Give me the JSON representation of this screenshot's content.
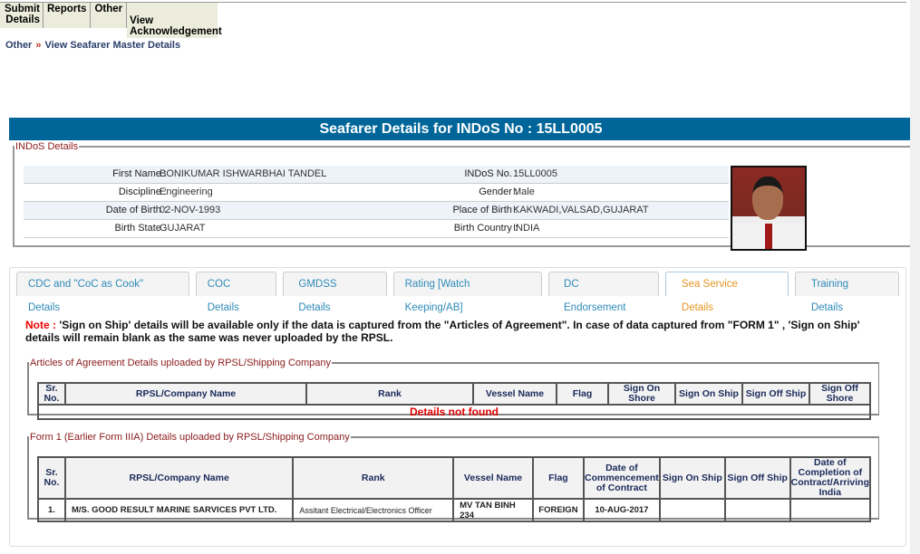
{
  "menu": [
    "Submit Details",
    "Reports",
    "Other",
    "View Acknowledgement"
  ],
  "breadcrumb": {
    "parent": "Other",
    "separator": "»",
    "current": "View Seafarer Master Details"
  },
  "header": "Seafarer Details for INDoS No : 15LL0005",
  "indos": {
    "legend": "INDoS Details",
    "rows": [
      {
        "l1": "First Name :",
        "v1": "BONIKUMAR ISHWARBHAI TANDEL",
        "l2": "INDoS No. :",
        "v2": "15LL0005"
      },
      {
        "l1": "Discipline :",
        "v1": "Engineering",
        "l2": "Gender :",
        "v2": "Male"
      },
      {
        "l1": "Date of Birth :",
        "v1": "02-NOV-1993",
        "l2": "Place of Birth :",
        "v2": "KAKWADI,VALSAD,GUJARAT"
      },
      {
        "l1": "Birth State :",
        "v1": "GUJARAT",
        "l2": "Birth Country :",
        "v2": "INDIA"
      }
    ]
  },
  "tabs": [
    "CDC and \"CoC as Cook\" Details",
    "COC Details",
    "GMDSS Details",
    "Rating [Watch Keeping/AB]",
    "DC Endorsement",
    "Sea Service Details",
    "Training Details"
  ],
  "active_tab": "Sea Service Details",
  "note": {
    "label": "Note :",
    "text": " 'Sign on Ship' details will be available only if the data is captured from the \"Articles of Agreement\". In case of data captured from \"FORM 1\" , 'Sign on Ship' details will remain blank as the same was never uploaded by the RPSL."
  },
  "articles": {
    "legend": "Articles of Agreement Details uploaded by RPSL/Shipping Company",
    "headers": [
      "Sr. No.",
      "RPSL/Company Name",
      "Rank",
      "Vessel Name",
      "Flag",
      "Sign On Shore",
      "Sign On Ship",
      "Sign Off Ship",
      "Sign Off Shore"
    ],
    "empty": "Details not found"
  },
  "form1": {
    "legend": "Form 1 (Earlier Form IIIA) Details uploaded by RPSL/Shipping Company",
    "headers": [
      "Sr. No.",
      "RPSL/Company Name",
      "Rank",
      "Vessel Name",
      "Flag",
      "Date of Commencement of Contract",
      "Sign On Ship",
      "Sign Off Ship",
      "Date of Completion of Contract/Arriving India"
    ],
    "rows": [
      [
        "1.",
        "M/S. GOOD RESULT MARINE SARVICES PVT LTD.",
        "Assitant Electrical/Electronics Officer",
        "MV TAN BINH 234",
        "FOREIGN",
        "10-AUG-2017",
        "",
        "",
        ""
      ]
    ]
  },
  "colors": {
    "header": "#006699",
    "active_tab": "#e59524",
    "tab": "#2e8ab8",
    "note_label": "#ee0000"
  }
}
